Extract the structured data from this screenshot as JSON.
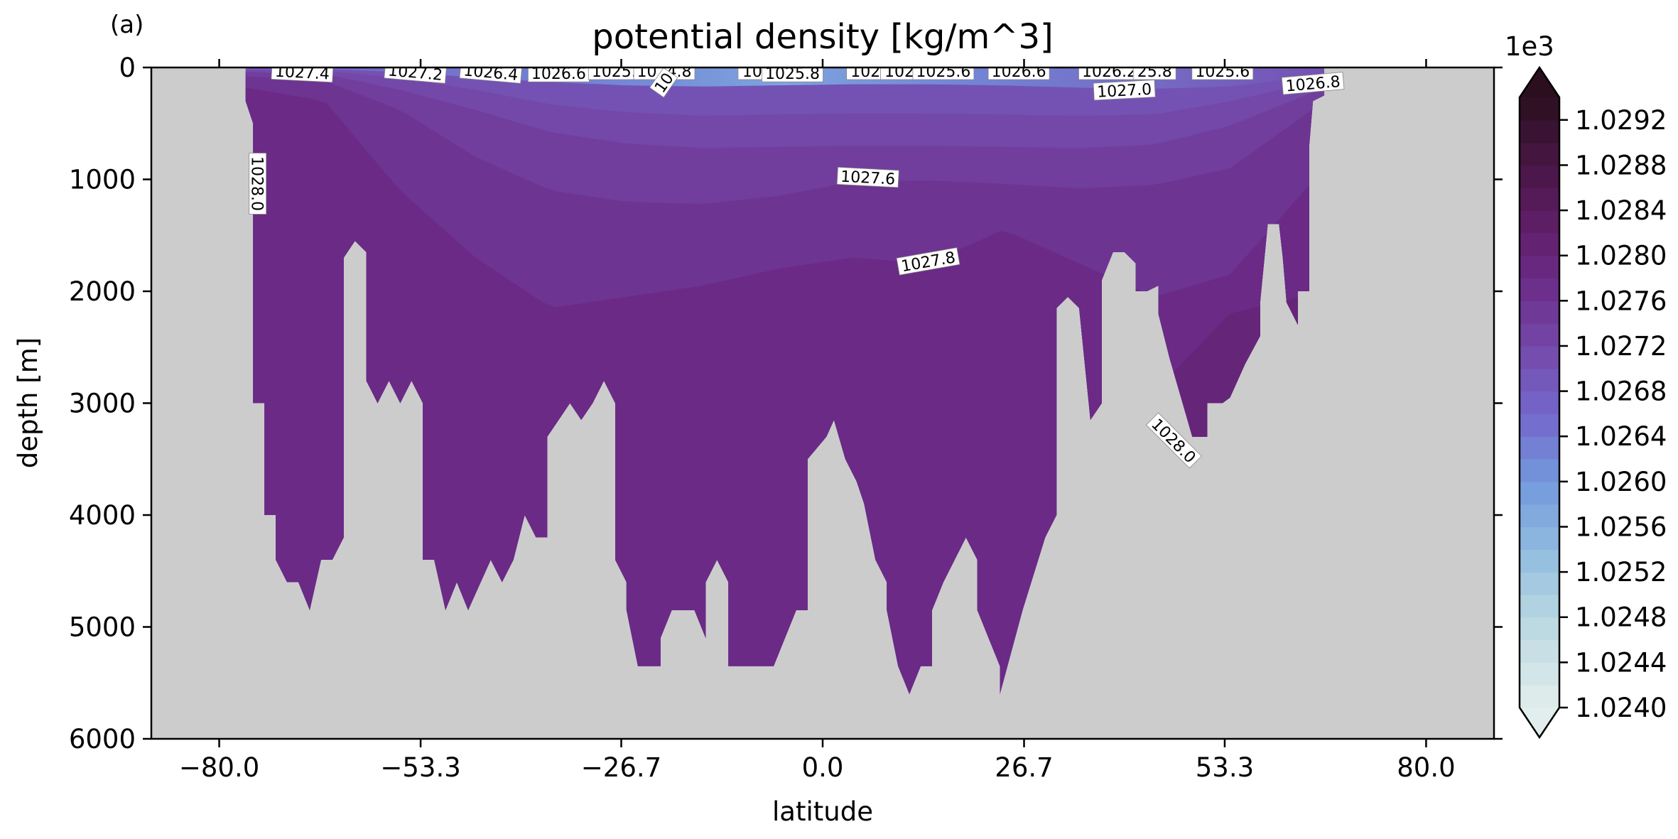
{
  "chart_data": {
    "type": "contourf",
    "panel_label": "(a)",
    "title": "potential density [kg/m^3]",
    "xlabel": "latitude",
    "ylabel": "depth [m]",
    "xlim": [
      -89,
      89
    ],
    "ylim": [
      6000,
      0
    ],
    "xticks": [
      -80.0,
      -53.3,
      -26.7,
      0.0,
      26.7,
      53.3,
      80.0
    ],
    "xtick_labels": [
      "−80.0",
      "−53.3",
      "−26.7",
      "0.0",
      "26.7",
      "53.3",
      "80.0"
    ],
    "yticks": [
      0,
      1000,
      2000,
      3000,
      4000,
      5000,
      6000
    ],
    "ytick_labels": [
      "0",
      "1000",
      "2000",
      "3000",
      "4000",
      "5000",
      "6000"
    ],
    "land_color": "#cccccc",
    "colorbar": {
      "multiplier": "1e3",
      "min": 1.024,
      "max": 1.0294,
      "step": 0.0002,
      "extend": "both",
      "tick_values": [
        1.024,
        1.0244,
        1.0248,
        1.0252,
        1.0256,
        1.026,
        1.0264,
        1.0268,
        1.0272,
        1.0276,
        1.028,
        1.0284,
        1.0288,
        1.0292
      ],
      "tick_labels": [
        "1.0240",
        "1.0244",
        "1.0248",
        "1.0252",
        "1.0256",
        "1.0260",
        "1.0264",
        "1.0268",
        "1.0272",
        "1.0276",
        "1.0280",
        "1.0284",
        "1.0288",
        "1.0292"
      ],
      "color_stops": [
        {
          "v": 1.024,
          "c": "#e2eeed"
        },
        {
          "v": 1.0248,
          "c": "#b8d7e0"
        },
        {
          "v": 1.0254,
          "c": "#90bbe0"
        },
        {
          "v": 1.026,
          "c": "#7399dc"
        },
        {
          "v": 1.0266,
          "c": "#7467cc"
        },
        {
          "v": 1.0272,
          "c": "#7448a8"
        },
        {
          "v": 1.0278,
          "c": "#6b2a86"
        },
        {
          "v": 1.0284,
          "c": "#5a1b5e"
        },
        {
          "v": 1.0294,
          "c": "#2b0f1f"
        }
      ]
    },
    "ocean_extent": {
      "lon_range": [
        -76.5,
        66.5
      ],
      "bottom_depth": [
        [
          -76.5,
          300
        ],
        [
          -75.5,
          500
        ],
        [
          -75.5,
          3000
        ],
        [
          -74,
          3000
        ],
        [
          -74,
          4000
        ],
        [
          -72.5,
          4000
        ],
        [
          -72.5,
          4400
        ],
        [
          -71,
          4600
        ],
        [
          -69.5,
          4600
        ],
        [
          -68,
          4850
        ],
        [
          -66.5,
          4400
        ],
        [
          -65,
          4400
        ],
        [
          -63.5,
          4200
        ],
        [
          -63.5,
          1700
        ],
        [
          -62,
          1550
        ],
        [
          -60.5,
          1650
        ],
        [
          -60.5,
          2800
        ],
        [
          -59,
          3000
        ],
        [
          -57.5,
          2800
        ],
        [
          -56,
          3000
        ],
        [
          -54.5,
          2800
        ],
        [
          -53,
          3000
        ],
        [
          -53,
          4400
        ],
        [
          -51.5,
          4400
        ],
        [
          -50,
          4850
        ],
        [
          -48.5,
          4600
        ],
        [
          -47,
          4850
        ],
        [
          -44,
          4400
        ],
        [
          -42.5,
          4600
        ],
        [
          -41,
          4400
        ],
        [
          -39.5,
          4000
        ],
        [
          -38,
          4200
        ],
        [
          -36.5,
          4200
        ],
        [
          -36.5,
          3300
        ],
        [
          -33.5,
          3000
        ],
        [
          -32,
          3150
        ],
        [
          -30.5,
          3000
        ],
        [
          -29,
          2800
        ],
        [
          -27.5,
          3000
        ],
        [
          -27.5,
          4400
        ],
        [
          -26,
          4600
        ],
        [
          -26,
          4850
        ],
        [
          -24.5,
          5350
        ],
        [
          -21.5,
          5350
        ],
        [
          -21.5,
          5100
        ],
        [
          -20,
          4850
        ],
        [
          -17,
          4850
        ],
        [
          -15.5,
          5100
        ],
        [
          -15.5,
          4600
        ],
        [
          -14,
          4400
        ],
        [
          -12.5,
          4600
        ],
        [
          -12.5,
          5350
        ],
        [
          -6.5,
          5350
        ],
        [
          -3.5,
          4850
        ],
        [
          -2,
          4850
        ],
        [
          -2,
          3500
        ],
        [
          0.5,
          3300
        ],
        [
          1.5,
          3150
        ],
        [
          3,
          3500
        ],
        [
          4.5,
          3700
        ],
        [
          5.5,
          3900
        ],
        [
          7,
          4400
        ],
        [
          8.5,
          4600
        ],
        [
          8.5,
          4850
        ],
        [
          10,
          5350
        ],
        [
          11.5,
          5600
        ],
        [
          13,
          5350
        ],
        [
          14.5,
          5350
        ],
        [
          14.5,
          4850
        ],
        [
          16,
          4600
        ],
        [
          17.5,
          4400
        ],
        [
          19,
          4200
        ],
        [
          20.5,
          4400
        ],
        [
          20.5,
          4850
        ],
        [
          23.5,
          5350
        ],
        [
          23.5,
          5600
        ],
        [
          26.5,
          4850
        ],
        [
          29.5,
          4200
        ],
        [
          31,
          4000
        ],
        [
          31,
          2150
        ],
        [
          32.5,
          2050
        ],
        [
          34,
          2150
        ],
        [
          35.5,
          3150
        ],
        [
          37,
          3000
        ],
        [
          37,
          1900
        ],
        [
          38.5,
          1650
        ],
        [
          40,
          1650
        ],
        [
          41.5,
          1750
        ],
        [
          41.5,
          2000
        ],
        [
          43,
          2000
        ],
        [
          44.5,
          1950
        ],
        [
          44.5,
          2200
        ],
        [
          46,
          2600
        ],
        [
          47.5,
          2950
        ],
        [
          49,
          3300
        ],
        [
          51,
          3300
        ],
        [
          51,
          3000
        ],
        [
          53,
          3000
        ],
        [
          54,
          2950
        ],
        [
          56,
          2650
        ],
        [
          58,
          2400
        ],
        [
          58,
          2100
        ],
        [
          59,
          1400
        ],
        [
          60.5,
          1400
        ],
        [
          61,
          1700
        ],
        [
          61.5,
          2100
        ],
        [
          63,
          2300
        ],
        [
          63,
          2000
        ],
        [
          64.5,
          2000
        ],
        [
          64.5,
          700
        ],
        [
          65,
          300
        ],
        [
          66.5,
          250
        ]
      ]
    },
    "isopycnals": [
      {
        "value": 1027.0,
        "depth_by_lat": [
          [
            -76.5,
            15
          ],
          [
            -66,
            15
          ],
          [
            -56,
            40
          ],
          [
            -46,
            90
          ],
          [
            -36,
            130
          ],
          [
            -26,
            160
          ],
          [
            -16,
            170
          ],
          [
            -6,
            160
          ],
          [
            4,
            150
          ],
          [
            14,
            150
          ],
          [
            24,
            160
          ],
          [
            34,
            180
          ],
          [
            44,
            190
          ],
          [
            54,
            170
          ],
          [
            66.5,
            70
          ]
        ]
      },
      {
        "value": 1027.2,
        "depth_by_lat": [
          [
            -76.5,
            25
          ],
          [
            -66,
            30
          ],
          [
            -56,
            90
          ],
          [
            -46,
            200
          ],
          [
            -36,
            330
          ],
          [
            -26,
            400
          ],
          [
            -16,
            430
          ],
          [
            -6,
            420
          ],
          [
            4,
            410
          ],
          [
            14,
            410
          ],
          [
            24,
            420
          ],
          [
            34,
            430
          ],
          [
            44,
            420
          ],
          [
            54,
            300
          ],
          [
            66.5,
            110
          ]
        ]
      },
      {
        "value": 1027.4,
        "depth_by_lat": [
          [
            -76.5,
            40
          ],
          [
            -66,
            60
          ],
          [
            -56,
            200
          ],
          [
            -46,
            380
          ],
          [
            -36,
            580
          ],
          [
            -26,
            680
          ],
          [
            -16,
            720
          ],
          [
            -6,
            710
          ],
          [
            4,
            700
          ],
          [
            14,
            700
          ],
          [
            24,
            710
          ],
          [
            34,
            720
          ],
          [
            44,
            690
          ],
          [
            54,
            520
          ],
          [
            66.5,
            180
          ]
        ]
      },
      {
        "value": 1027.6,
        "depth_by_lat": [
          [
            -76.5,
            80
          ],
          [
            -66,
            120
          ],
          [
            -56,
            380
          ],
          [
            -46,
            800
          ],
          [
            -36,
            1100
          ],
          [
            -26,
            1200
          ],
          [
            -16,
            1220
          ],
          [
            -6,
            1150
          ],
          [
            4,
            1020
          ],
          [
            14,
            1010
          ],
          [
            24,
            1040
          ],
          [
            34,
            1080
          ],
          [
            44,
            1050
          ],
          [
            54,
            900
          ],
          [
            66.5,
            300
          ]
        ]
      },
      {
        "value": 1027.8,
        "depth_by_lat": [
          [
            -76.5,
            180
          ],
          [
            -66,
            300
          ],
          [
            -56,
            1100
          ],
          [
            -46,
            1700
          ],
          [
            -36,
            2150
          ],
          [
            -26,
            2050
          ],
          [
            -16,
            1950
          ],
          [
            -6,
            1800
          ],
          [
            4,
            1700
          ],
          [
            14,
            1750
          ],
          [
            24,
            1450
          ],
          [
            34,
            1750
          ],
          [
            44,
            2050
          ],
          [
            54,
            1850
          ],
          [
            66.5,
            900
          ]
        ]
      },
      {
        "value": 1028.0,
        "depth_by_lat": [
          [
            34,
            3200
          ],
          [
            44,
            2900
          ],
          [
            54,
            2200
          ],
          [
            66.5,
            2000
          ]
        ]
      }
    ],
    "contour_labels": [
      {
        "text": "1028.0",
        "lat": -75,
        "depth": 1000,
        "rotation": 90
      },
      {
        "text": "1027.4",
        "lat": -69,
        "depth": 10,
        "rotation": 3
      },
      {
        "text": "1027.2",
        "lat": -54,
        "depth": 10,
        "rotation": 5
      },
      {
        "text": "1026.4",
        "lat": -44,
        "depth": 10,
        "rotation": 5
      },
      {
        "text": "1026.6",
        "lat": -35,
        "depth": 20,
        "rotation": 0
      },
      {
        "text": "1025.4",
        "lat": -27,
        "depth": 0,
        "rotation": 0
      },
      {
        "text": "1024.8",
        "lat": -21,
        "depth": 0,
        "rotation": 0
      },
      {
        "text": "10",
        "lat": -21,
        "depth": 100,
        "rotation": -55
      },
      {
        "text": "10.",
        "lat": -9,
        "depth": 0,
        "rotation": 0
      },
      {
        "text": "1025.8",
        "lat": -4,
        "depth": 20,
        "rotation": 0
      },
      {
        "text": "102.",
        "lat": 6,
        "depth": 0,
        "rotation": 0
      },
      {
        "text": "102.",
        "lat": 10.5,
        "depth": 0,
        "rotation": 0
      },
      {
        "text": "1025.6",
        "lat": 16,
        "depth": 0,
        "rotation": 0
      },
      {
        "text": "1026.6",
        "lat": 26,
        "depth": 0,
        "rotation": 0
      },
      {
        "text": "1026.2",
        "lat": 38,
        "depth": 0,
        "rotation": 0
      },
      {
        "text": "25.8",
        "lat": 44,
        "depth": 0,
        "rotation": 0
      },
      {
        "text": "1027.0",
        "lat": 40,
        "depth": 170,
        "rotation": -3
      },
      {
        "text": "1025.6",
        "lat": 53,
        "depth": 0,
        "rotation": 0
      },
      {
        "text": "1026.8",
        "lat": 65,
        "depth": 110,
        "rotation": -5
      },
      {
        "text": "1027.6",
        "lat": 6,
        "depth": 950,
        "rotation": 3
      },
      {
        "text": "1027.8",
        "lat": 14,
        "depth": 1700,
        "rotation": -10
      },
      {
        "text": "1028.0",
        "lat": 46.5,
        "depth": 3300,
        "rotation": 45
      }
    ]
  }
}
